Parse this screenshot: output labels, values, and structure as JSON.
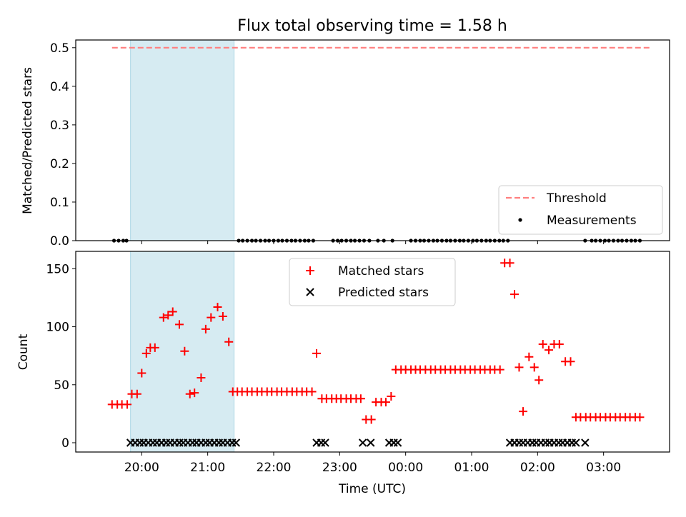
{
  "chart_data": [
    {
      "type": "scatter",
      "title": "Flux total observing time = 1.58 h",
      "xlabel": "",
      "ylabel": "Matched/Predicted stars",
      "ylim": [
        0,
        0.52
      ],
      "yticks": [
        "0.0",
        "0.1",
        "0.2",
        "0.3",
        "0.4",
        "0.5"
      ],
      "threshold": {
        "label": "Threshold",
        "value": 0.5,
        "x_range": [
          19.55,
          27.7
        ],
        "color": "#ff7f7f"
      },
      "shaded_span": [
        19.83,
        21.4
      ],
      "series": [
        {
          "name": "Measurements",
          "marker": "dot",
          "color": "#000000",
          "x": [
            19.58,
            19.65,
            19.72,
            19.77,
            21.47,
            21.53,
            21.6,
            21.67,
            21.73,
            21.8,
            21.87,
            21.93,
            22.0,
            22.07,
            22.13,
            22.2,
            22.27,
            22.33,
            22.4,
            22.47,
            22.53,
            22.6,
            22.9,
            22.97,
            23.03,
            23.1,
            23.17,
            23.23,
            23.3,
            23.37,
            23.45,
            23.58,
            23.67,
            23.8,
            24.08,
            24.15,
            24.22,
            24.28,
            24.35,
            24.42,
            24.48,
            24.55,
            24.62,
            24.68,
            24.75,
            24.82,
            24.88,
            24.95,
            25.02,
            25.08,
            25.15,
            25.22,
            25.28,
            25.35,
            25.42,
            25.48,
            25.55,
            26.72,
            26.82,
            26.88,
            26.95,
            27.02,
            27.08,
            27.15,
            27.22,
            27.28,
            27.35,
            27.42,
            27.48,
            27.55
          ],
          "y": [
            0,
            0,
            0,
            0,
            0,
            0,
            0,
            0,
            0,
            0,
            0,
            0,
            0,
            0,
            0,
            0,
            0,
            0,
            0,
            0,
            0,
            0,
            0,
            0,
            0,
            0,
            0,
            0,
            0,
            0,
            0,
            0,
            0,
            0,
            0,
            0,
            0,
            0,
            0,
            0,
            0,
            0,
            0,
            0,
            0,
            0,
            0,
            0,
            0,
            0,
            0,
            0,
            0,
            0,
            0,
            0,
            0,
            0,
            0,
            0,
            0,
            0,
            0,
            0,
            0,
            0,
            0,
            0,
            0,
            0
          ]
        }
      ],
      "legend": [
        "Threshold",
        "Measurements"
      ],
      "legend_position": "lower-right"
    },
    {
      "type": "scatter",
      "title": "",
      "xlabel": "Time (UTC)",
      "ylabel": "Count",
      "xlim": [
        19.0,
        28.0
      ],
      "ylim": [
        -8,
        165
      ],
      "yticks": [
        "0",
        "50",
        "100",
        "150"
      ],
      "xticks": [
        "20:00",
        "21:00",
        "22:00",
        "23:00",
        "00:00",
        "01:00",
        "02:00",
        "03:00"
      ],
      "shaded_span": [
        19.83,
        21.4
      ],
      "series": [
        {
          "name": "Matched stars",
          "marker": "plus",
          "color": "#ff0000",
          "x": [
            19.55,
            19.63,
            19.7,
            19.78,
            19.85,
            19.93,
            20.0,
            20.07,
            20.13,
            20.2,
            20.33,
            20.4,
            20.47,
            20.57,
            20.65,
            20.73,
            20.8,
            20.9,
            20.97,
            21.05,
            21.15,
            21.23,
            21.32,
            21.38,
            21.45,
            21.52,
            21.6,
            21.67,
            21.75,
            21.82,
            21.9,
            21.97,
            22.05,
            22.12,
            22.2,
            22.28,
            22.35,
            22.43,
            22.5,
            22.58,
            22.65,
            22.73,
            22.8,
            22.88,
            22.95,
            23.02,
            23.1,
            23.17,
            23.25,
            23.32,
            23.4,
            23.48,
            23.55,
            23.63,
            23.7,
            23.78,
            23.85,
            23.93,
            24.0,
            24.08,
            24.15,
            24.22,
            24.3,
            24.38,
            24.45,
            24.53,
            24.6,
            24.68,
            24.75,
            24.83,
            24.9,
            24.98,
            25.05,
            25.13,
            25.2,
            25.28,
            25.35,
            25.43,
            25.5,
            25.58,
            25.65,
            25.72,
            25.78,
            25.87,
            25.95,
            26.02,
            26.08,
            26.17,
            26.25,
            26.33,
            26.42,
            26.5,
            26.58,
            26.65,
            26.73,
            26.8,
            26.88,
            26.95,
            27.03,
            27.1,
            27.18,
            27.25,
            27.33,
            27.4,
            27.48,
            27.55
          ],
          "y": [
            33,
            33,
            33,
            33,
            42,
            42,
            60,
            77,
            82,
            82,
            108,
            110,
            113,
            102,
            79,
            42,
            43,
            56,
            98,
            108,
            117,
            109,
            87,
            44,
            44,
            44,
            44,
            44,
            44,
            44,
            44,
            44,
            44,
            44,
            44,
            44,
            44,
            44,
            44,
            44,
            77,
            38,
            38,
            38,
            38,
            38,
            38,
            38,
            38,
            38,
            20,
            20,
            35,
            35,
            35,
            40,
            63,
            63,
            63,
            63,
            63,
            63,
            63,
            63,
            63,
            63,
            63,
            63,
            63,
            63,
            63,
            63,
            63,
            63,
            63,
            63,
            63,
            63,
            155,
            155,
            128,
            65,
            27,
            74,
            65,
            54,
            85,
            80,
            85,
            85,
            70,
            70,
            22,
            22,
            22,
            22,
            22,
            22,
            22,
            22,
            22,
            22,
            22,
            22,
            22,
            22
          ]
        },
        {
          "name": "Predicted stars",
          "marker": "x",
          "color": "#000000",
          "x": [
            19.83,
            19.9,
            19.97,
            20.03,
            20.1,
            20.17,
            20.23,
            20.3,
            20.37,
            20.43,
            20.5,
            20.57,
            20.63,
            20.7,
            20.77,
            20.83,
            20.9,
            20.97,
            21.03,
            21.1,
            21.17,
            21.23,
            21.3,
            21.37,
            21.43,
            22.65,
            22.72,
            22.78,
            23.35,
            23.47,
            23.75,
            23.82,
            23.88,
            25.58,
            25.65,
            25.72,
            25.78,
            25.85,
            25.92,
            25.98,
            26.05,
            26.12,
            26.18,
            26.25,
            26.32,
            26.38,
            26.45,
            26.52,
            26.58,
            26.72
          ],
          "y": [
            0,
            0,
            0,
            0,
            0,
            0,
            0,
            0,
            0,
            0,
            0,
            0,
            0,
            0,
            0,
            0,
            0,
            0,
            0,
            0,
            0,
            0,
            0,
            0,
            0,
            0,
            0,
            0,
            0,
            0,
            0,
            0,
            0,
            0,
            0,
            0,
            0,
            0,
            0,
            0,
            0,
            0,
            0,
            0,
            0,
            0,
            0,
            0,
            0,
            0
          ]
        }
      ],
      "legend": [
        "Matched stars",
        "Predicted stars"
      ],
      "legend_position": "top-center"
    }
  ]
}
